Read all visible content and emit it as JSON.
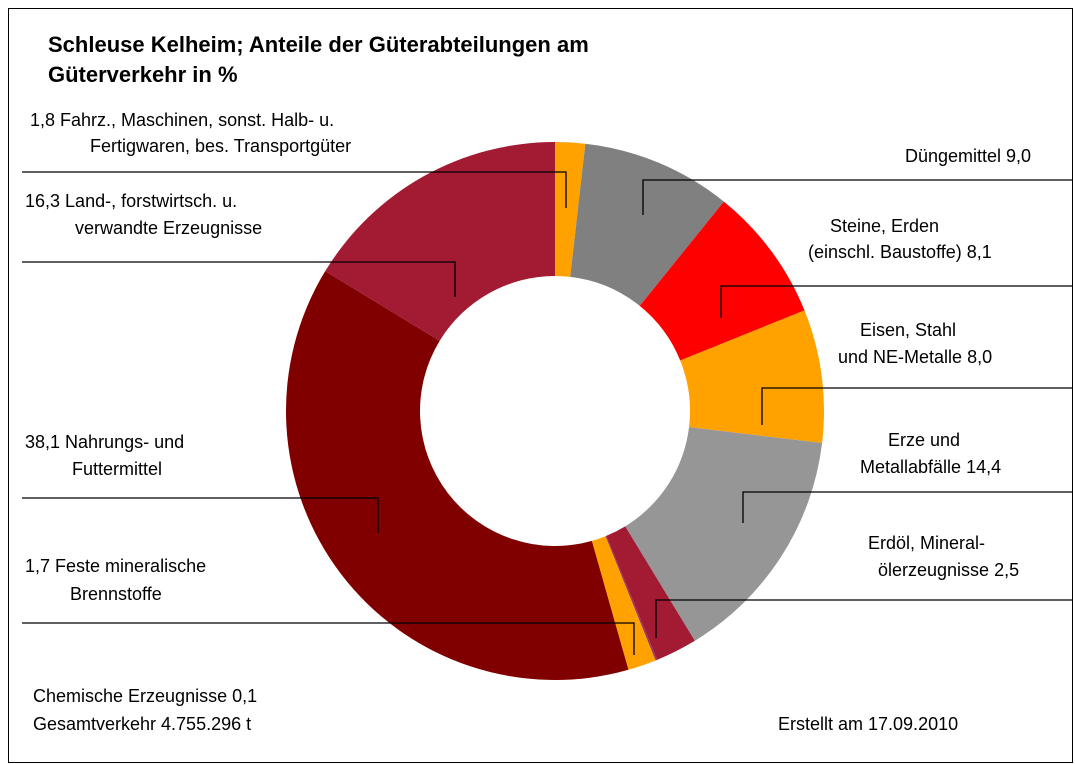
{
  "chart_data": {
    "type": "donut",
    "title": "Schleuse Kelheim; Anteile der Güterabteilungen am Güterverkehr in %",
    "categories": [
      "Fahrz., Maschinen, sonst. Halb- u. Fertigwaren, bes. Transportgüter",
      "Düngemittel",
      "Steine, Erden (einschl. Baustoffe)",
      "Eisen, Stahl und NE-Metalle",
      "Erze und Metallabfälle",
      "Erdöl, Mineral-ölerzeugnisse",
      "Chemische Erzeugnisse",
      "Feste mineralische Brennstoffe",
      "Nahrungs- und Futtermittel",
      "Land-, forstwirtsch. u. verwandte Erzeugnisse"
    ],
    "values": [
      1.8,
      9.0,
      8.1,
      8.0,
      14.4,
      2.5,
      0.1,
      1.7,
      38.1,
      16.3
    ],
    "value_labels": [
      "1,8",
      "9,0",
      "8,1",
      "8,0",
      "14,4",
      "2,5",
      "0,1",
      "1,7",
      "38,1",
      "16,3"
    ],
    "colors": [
      "#ffa200",
      "#808080",
      "#ff0000",
      "#ffa200",
      "#969696",
      "#a31a33",
      "#993366",
      "#ffa200",
      "#800000",
      "#a31a33"
    ],
    "annotations": [
      "Gesamtverkehr 4.755.296 t",
      "Erstellt am 17.09.2010"
    ]
  }
}
